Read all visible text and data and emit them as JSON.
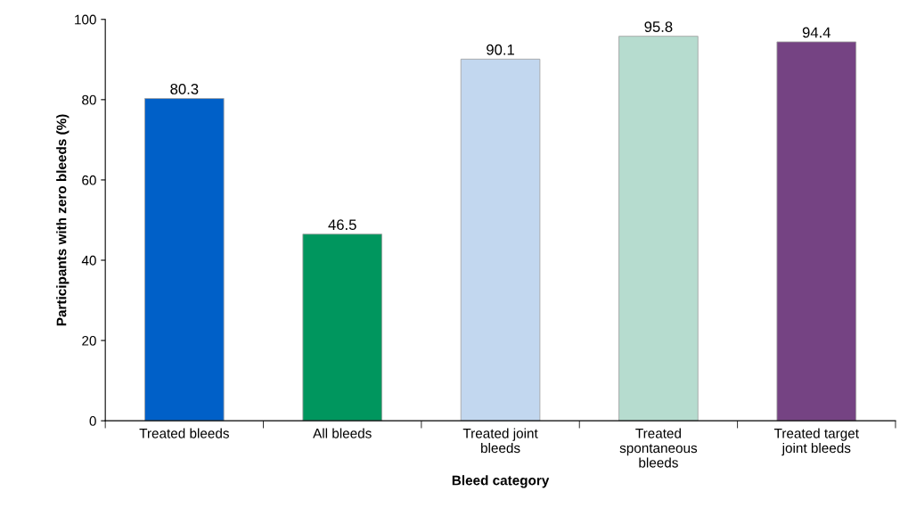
{
  "chart_data": {
    "type": "bar",
    "xlabel": "Bleed category",
    "ylabel": "Participants with zero bleeds (%)",
    "categories": [
      "Treated bleeds",
      "All bleeds",
      "Treated joint\nbleeds",
      "Treated\nspontaneous\nbleeds",
      "Treated target\njoint bleeds"
    ],
    "values": [
      80.3,
      46.5,
      90.1,
      95.8,
      94.4
    ],
    "colors": [
      "#0060c8",
      "#00965e",
      "#c2d7ef",
      "#b6dccf",
      "#754383"
    ],
    "ylim": [
      0,
      100
    ],
    "yticks": [
      0,
      20,
      40,
      60,
      80,
      100
    ],
    "data_labels": true,
    "grid": false,
    "legend": false
  }
}
